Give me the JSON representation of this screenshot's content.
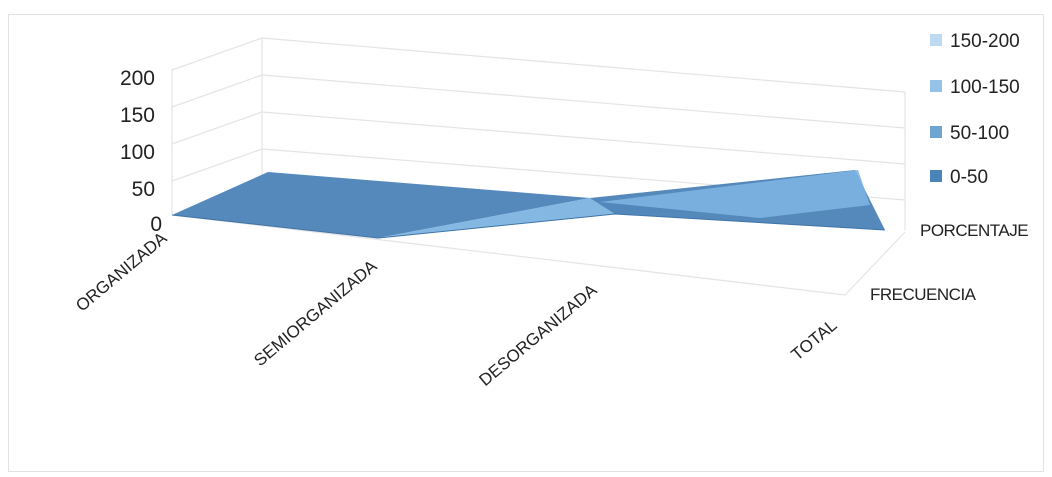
{
  "chart_data": {
    "type": "area",
    "style": "3d-surface",
    "categories": [
      "ORGANIZADA",
      "SEMIORGANIZADA",
      "DESORGANIZADA",
      "TOTAL"
    ],
    "series": [
      {
        "name": "FRECUENCIA",
        "values": [
          0,
          0,
          20,
          60
        ]
      },
      {
        "name": "PORCENTAJE",
        "values": [
          60,
          0,
          0,
          0
        ]
      }
    ],
    "ylim": [
      0,
      200
    ],
    "yticks": [
      "0",
      "50",
      "100",
      "150",
      "200"
    ],
    "legend": {
      "placement": "right",
      "items": [
        {
          "label": "150-200",
          "color": "#bcd9f0"
        },
        {
          "label": "100-150",
          "color": "#95c3e8"
        },
        {
          "label": "50-100",
          "color": "#6ea6d3"
        },
        {
          "label": "0-50",
          "color": "#4d84b8"
        }
      ]
    },
    "colors": {
      "surface": "#4f85b9",
      "surface_light": "#7db4e2",
      "grid": "#e4e4e4"
    }
  }
}
